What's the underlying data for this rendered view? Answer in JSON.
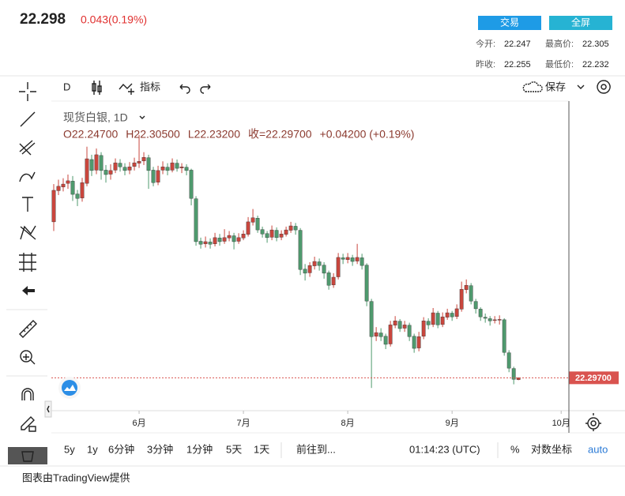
{
  "header": {
    "price": "22.298",
    "change": "0.043(0.19%)",
    "buttons": [
      "交易",
      "全屏"
    ],
    "stats": [
      [
        "今开:",
        "22.247",
        "最高价:",
        "22.305"
      ],
      [
        "昨收:",
        "22.255",
        "最低价:",
        "22.232"
      ]
    ]
  },
  "toolbar": {
    "interval": "D",
    "indicators": "指标",
    "save": "保存"
  },
  "chart_data": {
    "type": "candlestick",
    "title": "现货白银, 1D",
    "legend": [
      "O22.24700",
      "H22.30500",
      "L22.23200",
      "收=22.29700",
      "+0.04200 (+0.19%)"
    ],
    "up_color": "#c9463d",
    "down_color": "#4f9a6e",
    "xlim": [
      -0.5,
      108.3
    ],
    "xticks": [
      {
        "value": 18,
        "label": "6月"
      },
      {
        "value": 40,
        "label": "7月"
      },
      {
        "value": 62,
        "label": "8月"
      },
      {
        "value": 84,
        "label": "9月"
      },
      {
        "value": 107,
        "label": "10月"
      }
    ],
    "ylim": [
      21.4,
      29.8
    ],
    "last": {
      "value": 22.297,
      "label": "22.29700",
      "color": "#d9534f"
    },
    "open": [
      26.55,
      27.4,
      27.5,
      27.6,
      27.66,
      27.31,
      27.2,
      27.6,
      28.25,
      27.96,
      28.36,
      27.96,
      27.85,
      27.96,
      28.15,
      28.04,
      27.96,
      28.06,
      28.15,
      28.21,
      28.3,
      27.96,
      27.63,
      27.96,
      28.04,
      27.96,
      28.15,
      28.02,
      28.04,
      27.96,
      27.18,
      26.02,
      25.95,
      26.0,
      25.95,
      26.11,
      26.02,
      26.11,
      26.17,
      26.02,
      26.11,
      26.21,
      26.54,
      26.65,
      26.34,
      26.23,
      26.13,
      26.32,
      26.13,
      26.21,
      26.32,
      26.43,
      26.32,
      25.26,
      25.16,
      25.35,
      25.46,
      25.37,
      25.16,
      24.83,
      25.05,
      25.57,
      25.52,
      25.57,
      25.48,
      25.57,
      25.37,
      24.38,
      23.43,
      23.52,
      23.43,
      23.22,
      23.73,
      23.84,
      23.65,
      23.73,
      23.43,
      23.11,
      23.43,
      23.84,
      23.75,
      24.06,
      23.75,
      23.95,
      24.06,
      23.97,
      24.17,
      24.7,
      24.81,
      24.38,
      24.17,
      23.95,
      23.91,
      23.86,
      23.87,
      23.88,
      22.98,
      22.55,
      22.247
    ],
    "high": [
      27.58,
      27.7,
      27.74,
      27.84,
      27.8,
      27.42,
      27.75,
      28.6,
      28.38,
      28.55,
      28.45,
      28.1,
      28.12,
      28.28,
      28.26,
      28.15,
      28.18,
      28.3,
      28.92,
      28.45,
      28.38,
      28.05,
      28.08,
      28.2,
      28.15,
      28.28,
      28.25,
      28.15,
      28.12,
      28.0,
      27.25,
      26.12,
      26.15,
      26.1,
      26.25,
      26.22,
      26.35,
      26.3,
      26.25,
      26.24,
      26.32,
      26.68,
      26.9,
      26.72,
      26.42,
      26.3,
      26.45,
      26.4,
      26.32,
      26.42,
      26.55,
      26.52,
      26.38,
      25.4,
      25.45,
      25.6,
      25.55,
      25.45,
      25.22,
      25.15,
      25.7,
      25.68,
      25.7,
      25.65,
      25.95,
      25.68,
      25.42,
      24.45,
      23.68,
      23.65,
      23.5,
      23.85,
      23.98,
      23.9,
      23.85,
      23.8,
      23.5,
      23.55,
      23.95,
      23.92,
      24.2,
      24.12,
      24.08,
      24.18,
      24.12,
      24.3,
      24.92,
      24.98,
      24.88,
      24.45,
      24.22,
      24.05,
      23.98,
      23.98,
      24.0,
      23.92,
      23.05,
      22.6,
      22.305
    ],
    "low": [
      26.3,
      27.28,
      27.38,
      27.45,
      27.12,
      26.98,
      27.1,
      27.52,
      27.8,
      27.85,
      27.7,
      27.62,
      27.7,
      27.88,
      27.92,
      27.82,
      27.85,
      27.95,
      28.02,
      28.1,
      27.45,
      27.52,
      27.55,
      27.85,
      27.82,
      27.9,
      27.92,
      27.88,
      27.82,
      27.0,
      25.9,
      25.82,
      25.85,
      25.82,
      25.88,
      25.9,
      25.95,
      26.02,
      25.8,
      25.95,
      26.05,
      26.15,
      26.45,
      26.25,
      26.12,
      25.98,
      26.05,
      26.02,
      26.05,
      26.15,
      26.25,
      26.2,
      25.1,
      24.95,
      25.05,
      25.25,
      25.22,
      25.0,
      24.7,
      24.75,
      24.98,
      25.4,
      25.42,
      25.35,
      25.4,
      25.25,
      24.25,
      22.02,
      23.3,
      23.3,
      23.08,
      23.15,
      23.65,
      23.55,
      23.55,
      23.3,
      22.98,
      23.02,
      23.35,
      23.62,
      23.68,
      23.65,
      23.68,
      23.88,
      23.85,
      23.9,
      24.1,
      24.6,
      24.3,
      24.05,
      23.85,
      23.8,
      23.72,
      23.78,
      23.75,
      22.9,
      22.45,
      22.12,
      22.232
    ],
    "close": [
      27.41,
      27.52,
      27.58,
      27.67,
      27.3,
      27.19,
      27.62,
      28.27,
      27.95,
      28.38,
      27.95,
      27.84,
      27.95,
      28.16,
      28.05,
      27.95,
      28.05,
      28.16,
      28.2,
      28.31,
      27.95,
      27.62,
      27.95,
      28.05,
      27.95,
      28.16,
      28.01,
      28.05,
      27.95,
      27.19,
      26.01,
      25.94,
      26.01,
      25.94,
      26.12,
      26.01,
      26.12,
      26.18,
      26.01,
      26.12,
      26.22,
      26.55,
      26.66,
      26.33,
      26.22,
      26.12,
      26.33,
      26.12,
      26.22,
      26.33,
      26.44,
      26.33,
      25.25,
      25.15,
      25.36,
      25.47,
      25.36,
      25.15,
      24.82,
      25.04,
      25.58,
      25.53,
      25.58,
      25.47,
      25.58,
      25.36,
      24.39,
      23.42,
      23.53,
      23.42,
      23.21,
      23.74,
      23.85,
      23.64,
      23.74,
      23.42,
      23.1,
      23.42,
      23.85,
      23.74,
      24.07,
      23.74,
      23.96,
      24.07,
      23.96,
      24.18,
      24.71,
      24.82,
      24.39,
      24.18,
      23.96,
      23.92,
      23.85,
      23.88,
      23.89,
      22.99,
      22.56,
      22.255,
      22.297
    ]
  },
  "bottom_bar": {
    "ranges": [
      "5y",
      "1y",
      "6分钟",
      "3分钟",
      "1分钟",
      "5天",
      "1天"
    ],
    "goto": "前往到...",
    "time": "01:14:23 (UTC)",
    "percent": "%",
    "log": "对数坐标",
    "auto": "auto"
  },
  "footer": "图表由TradingView提供"
}
